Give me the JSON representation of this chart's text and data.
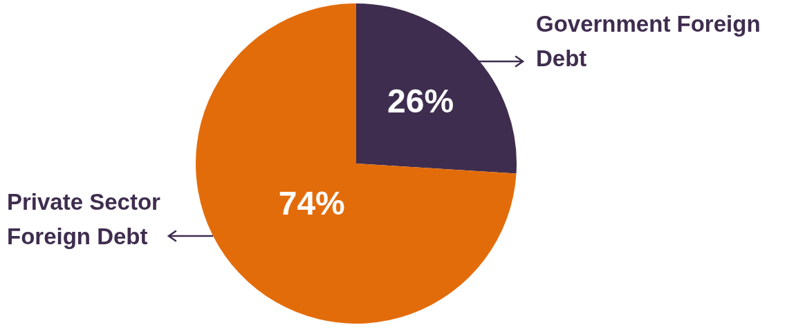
{
  "chart_data": {
    "type": "pie",
    "categories": [
      "Government Foreign Debt",
      "Private Sector Foreign Debt"
    ],
    "values": [
      26,
      74
    ],
    "colors": [
      "#3f2d4f",
      "#e36c0a"
    ],
    "value_labels": [
      "26%",
      "74%"
    ],
    "legend": false
  }
}
